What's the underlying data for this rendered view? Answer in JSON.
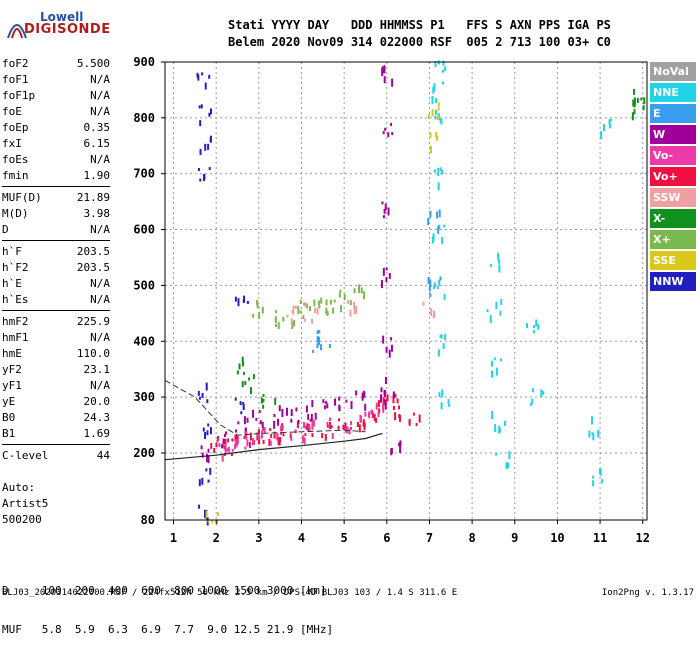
{
  "brand": {
    "line1": "Lowell",
    "line2": "DIGISONDE"
  },
  "header": {
    "row1": "Stati YYYY DAY   DDD HHMMSS P1   FFS S AXN PPS IGA PS",
    "row2": "Belem 2020 Nov09 314 022000 RSF  005 2 713 100 03+ C0"
  },
  "params": {
    "group1": [
      {
        "label": "foF2",
        "value": "5.500"
      },
      {
        "label": "foF1",
        "value": "N/A"
      },
      {
        "label": "foF1p",
        "value": "N/A"
      },
      {
        "label": "foE",
        "value": "N/A"
      },
      {
        "label": "foEp",
        "value": "0.35"
      },
      {
        "label": "fxI",
        "value": "6.15"
      },
      {
        "label": "foEs",
        "value": "N/A"
      },
      {
        "label": "fmin",
        "value": "1.90"
      }
    ],
    "group2": [
      {
        "label": "MUF(D)",
        "value": "21.89"
      },
      {
        "label": "M(D)",
        "value": "3.98"
      },
      {
        "label": "D",
        "value": "N/A"
      }
    ],
    "group3": [
      {
        "label": "h`F",
        "value": "203.5"
      },
      {
        "label": "h`F2",
        "value": "203.5"
      },
      {
        "label": "h`E",
        "value": "N/A"
      },
      {
        "label": "h`Es",
        "value": "N/A"
      }
    ],
    "group4": [
      {
        "label": "hmF2",
        "value": "225.9"
      },
      {
        "label": "hmF1",
        "value": "N/A"
      },
      {
        "label": "hmE",
        "value": "110.0"
      },
      {
        "label": "yF2",
        "value": "23.1"
      },
      {
        "label": "yF1",
        "value": "N/A"
      },
      {
        "label": "yE",
        "value": "20.0"
      },
      {
        "label": "B0",
        "value": "24.3"
      },
      {
        "label": "B1",
        "value": "1.69"
      }
    ],
    "group5": [
      {
        "label": "C-level",
        "value": "44"
      }
    ]
  },
  "auto": {
    "line1": "Auto:",
    "line2": "Artist5",
    "line3": "500200"
  },
  "legend": [
    {
      "label": "NoVal",
      "color": "#a0a0a0"
    },
    {
      "label": "NNE",
      "color": "#22d3e6"
    },
    {
      "label": "E",
      "color": "#3a9ef0"
    },
    {
      "label": "W",
      "color": "#a0009a"
    },
    {
      "label": "Vo-",
      "color": "#ee3aa8"
    },
    {
      "label": "Vo+",
      "color": "#ee1040"
    },
    {
      "label": "SSW",
      "color": "#f0a0a0"
    },
    {
      "label": "X-",
      "color": "#10901c"
    },
    {
      "label": "X+",
      "color": "#7ab850"
    },
    {
      "label": "SSE",
      "color": "#d8c81c"
    },
    {
      "label": "NNW",
      "color": "#2020c0"
    }
  ],
  "footer": {
    "d_row": "D     100  200  400  600  800 1000 1500 3000 [km]",
    "muf_row": "MUF   5.8  5.9  6.3  6.9  7.7  9.0 12.5 21.9 [MHz]",
    "file": "BLJ03_2020314022000.RSF / 224fx512h 50 kHz 2.5 km / DPS-4D BLJ03 103 / 1.4 S 311.6 E",
    "version": "Ion2Png v. 1.3.17"
  },
  "chart_data": {
    "type": "scatter",
    "x_ticks": [
      1,
      2,
      3,
      4,
      5,
      6,
      7,
      8,
      9,
      10,
      11,
      12
    ],
    "y_ticks": [
      200,
      300,
      400,
      500,
      600,
      700,
      800,
      900
    ],
    "y_tick_labels": [
      "200",
      "300",
      "400",
      "500",
      "600",
      "700",
      "800",
      "900"
    ],
    "y_extra_label": "80",
    "xlim": [
      0.8,
      12.1
    ],
    "ylim": [
      80,
      900
    ],
    "grid": true,
    "legend_position": "right",
    "trace_series": [
      {
        "name": "Vo+",
        "points": [
          [
            2.0,
            218
          ],
          [
            2.2,
            215
          ],
          [
            2.5,
            222
          ],
          [
            2.8,
            228
          ],
          [
            3.0,
            235
          ],
          [
            3.3,
            240
          ],
          [
            3.6,
            238
          ],
          [
            4.0,
            242
          ],
          [
            4.3,
            245
          ],
          [
            4.6,
            248
          ],
          [
            5.0,
            252
          ],
          [
            5.3,
            262
          ],
          [
            5.6,
            270
          ],
          [
            5.9,
            285
          ],
          [
            6.1,
            300
          ],
          [
            6.3,
            270
          ],
          [
            6.6,
            265
          ]
        ]
      },
      {
        "name": "Vo-",
        "points": [
          [
            2.1,
            212
          ],
          [
            2.4,
            218
          ],
          [
            2.7,
            225
          ],
          [
            3.1,
            232
          ],
          [
            3.5,
            236
          ],
          [
            3.9,
            240
          ],
          [
            4.2,
            244
          ],
          [
            4.7,
            250
          ],
          [
            5.1,
            255
          ],
          [
            5.5,
            265
          ],
          [
            5.8,
            275
          ]
        ]
      },
      {
        "name": "W",
        "points": [
          [
            1.7,
            210
          ],
          [
            2.2,
            230
          ],
          [
            2.6,
            250
          ],
          [
            3.0,
            262
          ],
          [
            3.4,
            270
          ],
          [
            3.8,
            275
          ],
          [
            4.2,
            280
          ],
          [
            4.6,
            285
          ],
          [
            5.0,
            290
          ],
          [
            5.4,
            300
          ],
          [
            5.8,
            320
          ],
          [
            6.0,
            880
          ],
          [
            6.0,
            780
          ],
          [
            6.0,
            640
          ],
          [
            6.0,
            520
          ],
          [
            6.0,
            400
          ],
          [
            6.0,
            300
          ],
          [
            6.2,
            220
          ]
        ]
      },
      {
        "name": "NNE",
        "points": [
          [
            7.2,
            900
          ],
          [
            7.2,
            850
          ],
          [
            7.2,
            800
          ],
          [
            7.2,
            700
          ],
          [
            7.2,
            600
          ],
          [
            7.2,
            500
          ],
          [
            7.2,
            400
          ],
          [
            7.3,
            300
          ],
          [
            8.5,
            550
          ],
          [
            8.5,
            460
          ],
          [
            8.6,
            360
          ],
          [
            8.6,
            260
          ],
          [
            8.7,
            190
          ],
          [
            9.4,
            430
          ],
          [
            9.5,
            300
          ],
          [
            10.8,
            250
          ],
          [
            10.9,
            160
          ],
          [
            11.1,
            790
          ]
        ]
      },
      {
        "name": "NNW",
        "points": [
          [
            1.7,
            870
          ],
          [
            1.7,
            810
          ],
          [
            1.7,
            760
          ],
          [
            1.7,
            700
          ],
          [
            1.7,
            310
          ],
          [
            1.7,
            250
          ],
          [
            1.7,
            160
          ],
          [
            1.7,
            100
          ],
          [
            2.5,
            285
          ],
          [
            2.6,
            470
          ]
        ]
      },
      {
        "name": "E",
        "points": [
          [
            4.4,
            400
          ],
          [
            4.5,
            410
          ],
          [
            7.1,
            620
          ],
          [
            7.1,
            500
          ]
        ]
      },
      {
        "name": "X+",
        "points": [
          [
            3.0,
            460
          ],
          [
            3.4,
            440
          ],
          [
            3.8,
            450
          ],
          [
            4.1,
            460
          ],
          [
            4.4,
            470
          ],
          [
            4.7,
            470
          ],
          [
            5.0,
            480
          ],
          [
            5.3,
            490
          ]
        ]
      },
      {
        "name": "X-",
        "points": [
          [
            2.6,
            360
          ],
          [
            2.7,
            330
          ],
          [
            3.2,
            300
          ],
          [
            11.9,
            840
          ],
          [
            11.9,
            820
          ]
        ]
      },
      {
        "name": "SSW",
        "points": [
          [
            3.8,
            455
          ],
          [
            4.2,
            455
          ],
          [
            5.1,
            460
          ],
          [
            7.0,
            460
          ]
        ]
      },
      {
        "name": "SSE",
        "points": [
          [
            1.9,
            90
          ],
          [
            7.1,
            820
          ],
          [
            7.1,
            760
          ]
        ]
      }
    ],
    "profile_line": [
      [
        0.8,
        188
      ],
      [
        2,
        196
      ],
      [
        3,
        206
      ],
      [
        4,
        213
      ],
      [
        5,
        221
      ],
      [
        5.5,
        226
      ],
      [
        5.9,
        235
      ]
    ],
    "profile_dashed": [
      [
        0.8,
        330
      ],
      [
        1.5,
        300
      ],
      [
        2.1,
        250
      ],
      [
        2.5,
        232
      ],
      [
        3.1,
        235
      ],
      [
        4.0,
        238
      ],
      [
        5.0,
        241
      ],
      [
        5.5,
        238
      ]
    ]
  }
}
